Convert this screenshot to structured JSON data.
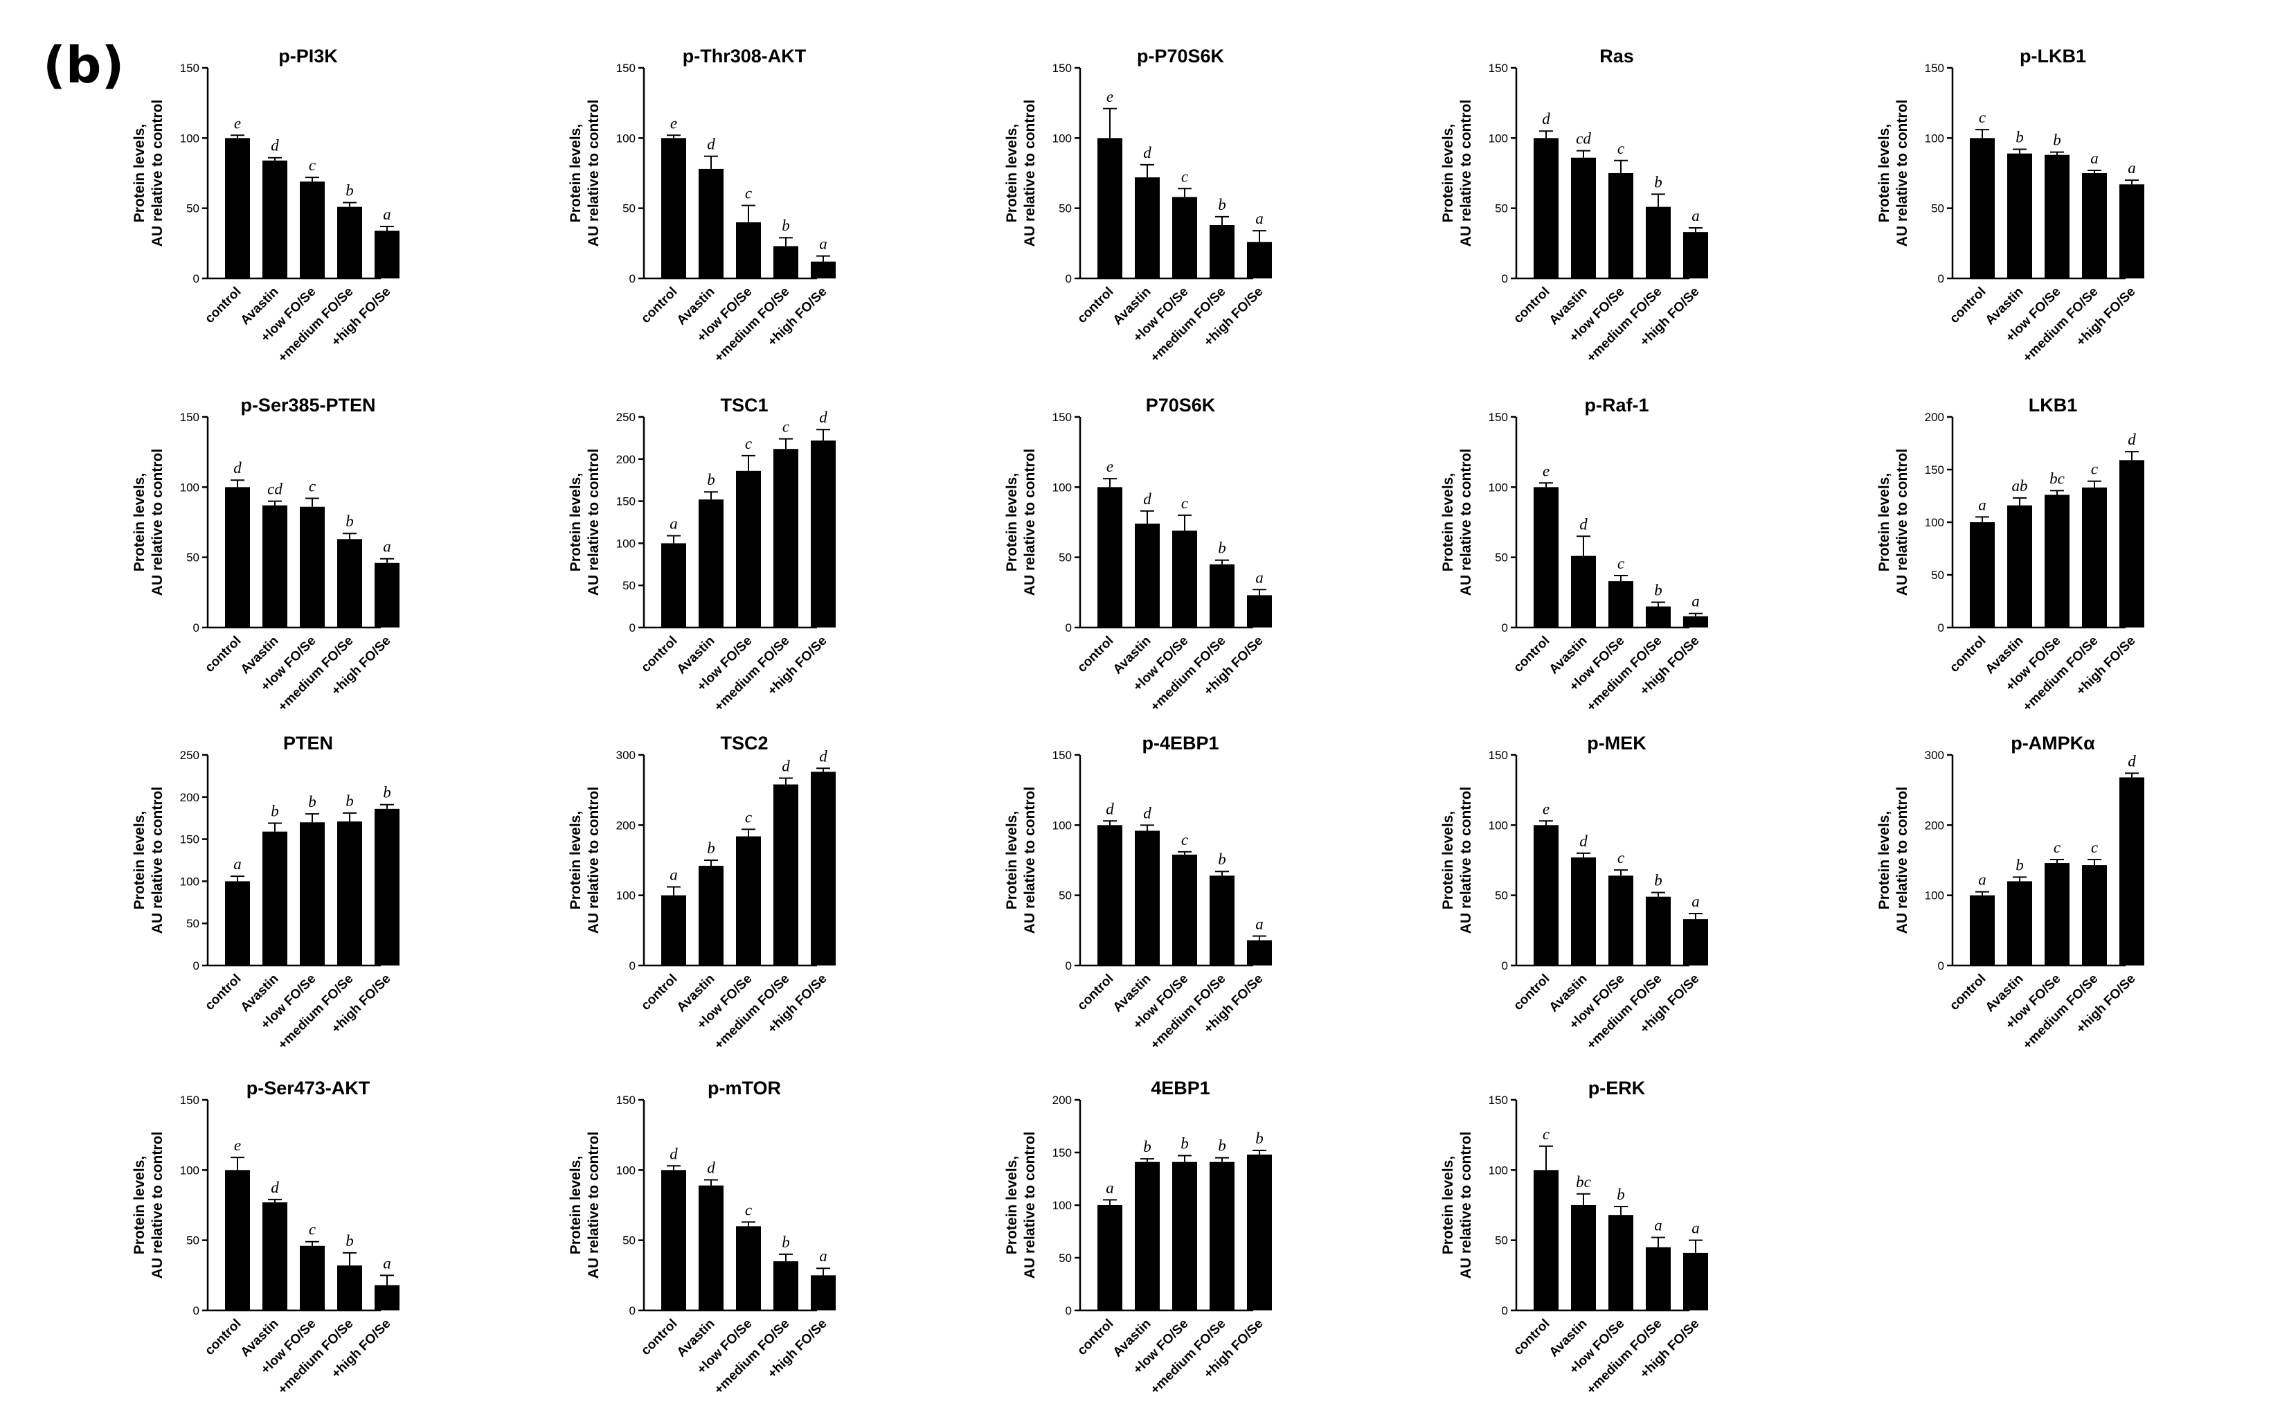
{
  "panel_label": "(b)",
  "ylabel_line1": "Protein levels,",
  "ylabel_line2": "AU relative to control",
  "categories": [
    "control",
    "Avastin",
    "+low FO/Se",
    "+medium FO/Se",
    "+high FO/Se"
  ],
  "bar_color": "#000000",
  "chart_data": [
    {
      "type": "bar",
      "title": "p-PI3K",
      "categories": [
        "control",
        "Avastin",
        "+low FO/Se",
        "+medium FO/Se",
        "+high FO/Se"
      ],
      "values": [
        100,
        84,
        69,
        51,
        34
      ],
      "errors": [
        2,
        2,
        3,
        3,
        3
      ],
      "letters": [
        "e",
        "d",
        "c",
        "b",
        "a"
      ],
      "ylim": [
        0,
        150
      ],
      "ticks": [
        0,
        50,
        100,
        150
      ]
    },
    {
      "type": "bar",
      "title": "p-Thr308-AKT",
      "categories": [
        "control",
        "Avastin",
        "+low FO/Se",
        "+medium FO/Se",
        "+high FO/Se"
      ],
      "values": [
        100,
        78,
        40,
        23,
        12
      ],
      "errors": [
        2,
        9,
        12,
        6,
        4
      ],
      "letters": [
        "e",
        "d",
        "c",
        "b",
        "a"
      ],
      "ylim": [
        0,
        150
      ],
      "ticks": [
        0,
        50,
        100,
        150
      ]
    },
    {
      "type": "bar",
      "title": "p-P70S6K",
      "categories": [
        "control",
        "Avastin",
        "+low FO/Se",
        "+medium FO/Se",
        "+high FO/Se"
      ],
      "values": [
        100,
        72,
        58,
        38,
        26
      ],
      "errors": [
        21,
        9,
        6,
        6,
        8
      ],
      "letters": [
        "e",
        "d",
        "c",
        "b",
        "a"
      ],
      "ylim": [
        0,
        150
      ],
      "ticks": [
        0,
        50,
        100,
        150
      ]
    },
    {
      "type": "bar",
      "title": "Ras",
      "categories": [
        "control",
        "Avastin",
        "+low FO/Se",
        "+medium FO/Se",
        "+high FO/Se"
      ],
      "values": [
        100,
        86,
        75,
        51,
        33
      ],
      "errors": [
        5,
        5,
        9,
        9,
        3
      ],
      "letters": [
        "d",
        "cd",
        "c",
        "b",
        "a"
      ],
      "ylim": [
        0,
        150
      ],
      "ticks": [
        0,
        50,
        100,
        150
      ]
    },
    {
      "type": "bar",
      "title": "p-LKB1",
      "categories": [
        "control",
        "Avastin",
        "+low FO/Se",
        "+medium FO/Se",
        "+high FO/Se"
      ],
      "values": [
        100,
        89,
        88,
        75,
        67
      ],
      "errors": [
        6,
        3,
        2,
        2,
        3
      ],
      "letters": [
        "c",
        "b",
        "b",
        "a",
        "a"
      ],
      "ylim": [
        0,
        150
      ],
      "ticks": [
        0,
        50,
        100,
        150
      ]
    },
    {
      "type": "bar",
      "title": "p-Ser385-PTEN",
      "categories": [
        "control",
        "Avastin",
        "+low FO/Se",
        "+medium FO/Se",
        "+high FO/Se"
      ],
      "values": [
        100,
        87,
        86,
        63,
        46
      ],
      "errors": [
        5,
        3,
        6,
        4,
        3
      ],
      "letters": [
        "d",
        "cd",
        "c",
        "b",
        "a"
      ],
      "ylim": [
        0,
        150
      ],
      "ticks": [
        0,
        50,
        100,
        150
      ]
    },
    {
      "type": "bar",
      "title": "TSC1",
      "categories": [
        "control",
        "Avastin",
        "+low FO/Se",
        "+medium FO/Se",
        "+high FO/Se"
      ],
      "values": [
        100,
        152,
        186,
        212,
        222
      ],
      "errors": [
        9,
        9,
        18,
        12,
        13
      ],
      "letters": [
        "a",
        "b",
        "c",
        "c",
        "d"
      ],
      "ylim": [
        0,
        250
      ],
      "ticks": [
        0,
        50,
        100,
        150,
        200,
        250
      ]
    },
    {
      "type": "bar",
      "title": "P70S6K",
      "categories": [
        "control",
        "Avastin",
        "+low FO/Se",
        "+medium FO/Se",
        "+high FO/Se"
      ],
      "values": [
        100,
        74,
        69,
        45,
        23
      ],
      "errors": [
        6,
        9,
        11,
        3,
        4
      ],
      "letters": [
        "e",
        "d",
        "c",
        "b",
        "a"
      ],
      "ylim": [
        0,
        150
      ],
      "ticks": [
        0,
        50,
        100,
        150
      ]
    },
    {
      "type": "bar",
      "title": "p-Raf-1",
      "categories": [
        "control",
        "Avastin",
        "+low FO/Se",
        "+medium FO/Se",
        "+high FO/Se"
      ],
      "values": [
        100,
        51,
        33,
        15,
        8
      ],
      "errors": [
        3,
        14,
        4,
        3,
        2
      ],
      "letters": [
        "e",
        "d",
        "c",
        "b",
        "a"
      ],
      "ylim": [
        0,
        150
      ],
      "ticks": [
        0,
        50,
        100,
        150
      ]
    },
    {
      "type": "bar",
      "title": "LKB1",
      "categories": [
        "control",
        "Avastin",
        "+low FO/Se",
        "+medium FO/Se",
        "+high FO/Se"
      ],
      "values": [
        100,
        116,
        126,
        133,
        159
      ],
      "errors": [
        5,
        7,
        4,
        6,
        8
      ],
      "letters": [
        "a",
        "ab",
        "bc",
        "c",
        "d"
      ],
      "ylim": [
        0,
        200
      ],
      "ticks": [
        0,
        50,
        100,
        150,
        200
      ]
    },
    {
      "type": "bar",
      "title": "PTEN",
      "categories": [
        "control",
        "Avastin",
        "+low FO/Se",
        "+medium FO/Se",
        "+high FO/Se"
      ],
      "values": [
        100,
        159,
        170,
        171,
        186
      ],
      "errors": [
        6,
        10,
        10,
        10,
        5
      ],
      "letters": [
        "a",
        "b",
        "b",
        "b",
        "b"
      ],
      "ylim": [
        0,
        250
      ],
      "ticks": [
        0,
        50,
        100,
        150,
        200,
        250
      ]
    },
    {
      "type": "bar",
      "title": "TSC2",
      "categories": [
        "control",
        "Avastin",
        "+low FO/Se",
        "+medium FO/Se",
        "+high FO/Se"
      ],
      "values": [
        100,
        142,
        184,
        258,
        276
      ],
      "errors": [
        12,
        8,
        10,
        9,
        5
      ],
      "letters": [
        "a",
        "b",
        "c",
        "d",
        "d"
      ],
      "ylim": [
        0,
        300
      ],
      "ticks": [
        0,
        100,
        200,
        300
      ]
    },
    {
      "type": "bar",
      "title": "p-4EBP1",
      "categories": [
        "control",
        "Avastin",
        "+low FO/Se",
        "+medium FO/Se",
        "+high FO/Se"
      ],
      "values": [
        100,
        96,
        79,
        64,
        18
      ],
      "errors": [
        3,
        4,
        2,
        3,
        3
      ],
      "letters": [
        "d",
        "d",
        "c",
        "b",
        "a"
      ],
      "ylim": [
        0,
        150
      ],
      "ticks": [
        0,
        50,
        100,
        150
      ]
    },
    {
      "type": "bar",
      "title": "p-MEK",
      "categories": [
        "control",
        "Avastin",
        "+low FO/Se",
        "+medium FO/Se",
        "+high FO/Se"
      ],
      "values": [
        100,
        77,
        64,
        49,
        33
      ],
      "errors": [
        3,
        3,
        4,
        3,
        4
      ],
      "letters": [
        "e",
        "d",
        "c",
        "b",
        "a"
      ],
      "ylim": [
        0,
        150
      ],
      "ticks": [
        0,
        50,
        100,
        150
      ]
    },
    {
      "type": "bar",
      "title": "p-AMPKα",
      "categories": [
        "control",
        "Avastin",
        "+low FO/Se",
        "+medium FO/Se",
        "+high FO/Se"
      ],
      "values": [
        100,
        120,
        146,
        143,
        268
      ],
      "errors": [
        5,
        6,
        5,
        8,
        6
      ],
      "letters": [
        "a",
        "b",
        "c",
        "c",
        "d"
      ],
      "ylim": [
        0,
        300
      ],
      "ticks": [
        0,
        100,
        200,
        300
      ]
    },
    {
      "type": "bar",
      "title": "p-Ser473-AKT",
      "categories": [
        "control",
        "Avastin",
        "+low FO/Se",
        "+medium FO/Se",
        "+high FO/Se"
      ],
      "values": [
        100,
        77,
        46,
        32,
        18
      ],
      "errors": [
        9,
        2,
        3,
        9,
        7
      ],
      "letters": [
        "e",
        "d",
        "c",
        "b",
        "a"
      ],
      "ylim": [
        0,
        150
      ],
      "ticks": [
        0,
        50,
        100,
        150
      ]
    },
    {
      "type": "bar",
      "title": "p-mTOR",
      "categories": [
        "control",
        "Avastin",
        "+low FO/Se",
        "+medium FO/Se",
        "+high FO/Se"
      ],
      "values": [
        100,
        89,
        60,
        35,
        25
      ],
      "errors": [
        3,
        4,
        3,
        5,
        5
      ],
      "letters": [
        "d",
        "d",
        "c",
        "b",
        "a"
      ],
      "ylim": [
        0,
        150
      ],
      "ticks": [
        0,
        50,
        100,
        150
      ]
    },
    {
      "type": "bar",
      "title": "4EBP1",
      "categories": [
        "control",
        "Avastin",
        "+low FO/Se",
        "+medium FO/Se",
        "+high FO/Se"
      ],
      "values": [
        100,
        141,
        141,
        141,
        148
      ],
      "errors": [
        5,
        3,
        6,
        4,
        4
      ],
      "letters": [
        "a",
        "b",
        "b",
        "b",
        "b"
      ],
      "ylim": [
        0,
        200
      ],
      "ticks": [
        0,
        50,
        100,
        150,
        200
      ]
    },
    {
      "type": "bar",
      "title": "p-ERK",
      "categories": [
        "control",
        "Avastin",
        "+low FO/Se",
        "+medium FO/Se",
        "+high FO/Se"
      ],
      "values": [
        100,
        75,
        68,
        45,
        41
      ],
      "errors": [
        17,
        8,
        6,
        7,
        9
      ],
      "letters": [
        "c",
        "bc",
        "b",
        "a",
        "a"
      ],
      "ylim": [
        0,
        150
      ],
      "ticks": [
        0,
        50,
        100,
        150
      ]
    }
  ]
}
